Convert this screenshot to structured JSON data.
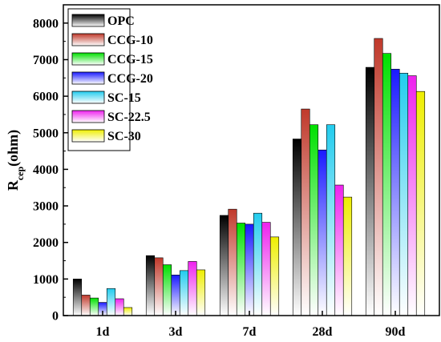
{
  "chart_data": {
    "type": "bar",
    "categories": [
      "1d",
      "3d",
      "7d",
      "28d",
      "90d"
    ],
    "ylabel_main": "R",
    "ylabel_sub": "cep",
    "ylabel_unit": "(ohm)",
    "ylim": [
      0,
      8500
    ],
    "yticks": [
      0,
      1000,
      2000,
      3000,
      4000,
      5000,
      6000,
      7000,
      8000
    ],
    "legend_position": "top-left",
    "grid": false,
    "gradient": "vertical fade from series color at top to white at bottom",
    "series": [
      {
        "name": "OPC",
        "color": "#000000",
        "values": [
          1000,
          1640,
          2740,
          4830,
          6790
        ]
      },
      {
        "name": "CCG-10",
        "color": "#c0392b",
        "values": [
          560,
          1580,
          2910,
          5650,
          7580
        ]
      },
      {
        "name": "CCG-15",
        "color": "#00e000",
        "values": [
          480,
          1390,
          2530,
          5220,
          7170
        ]
      },
      {
        "name": "CCG-20",
        "color": "#1a1aff",
        "values": [
          360,
          1110,
          2500,
          4530,
          6740
        ]
      },
      {
        "name": "SC-15",
        "color": "#22ccee",
        "values": [
          740,
          1230,
          2800,
          5220,
          6630
        ]
      },
      {
        "name": "SC-22.5",
        "color": "#ee22ee",
        "values": [
          460,
          1480,
          2550,
          3570,
          6560
        ]
      },
      {
        "name": "SC-30",
        "color": "#eeee00",
        "values": [
          220,
          1250,
          2150,
          3240,
          6130
        ]
      }
    ]
  }
}
